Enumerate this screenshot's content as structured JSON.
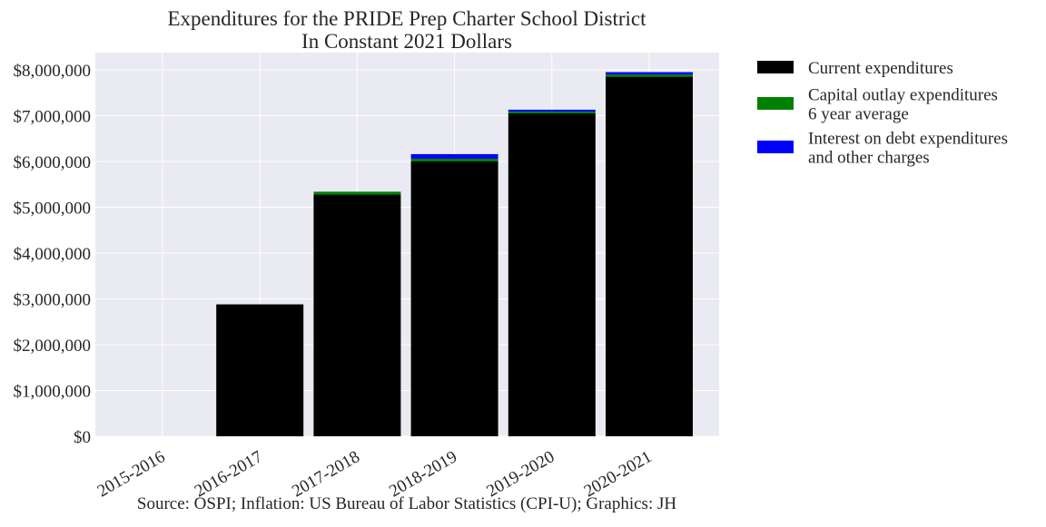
{
  "chart_data": {
    "type": "bar",
    "stacked": true,
    "title": "Expenditures for the PRIDE Prep Charter School District",
    "subtitle": "In Constant 2021 Dollars",
    "xlabel": "",
    "ylabel": "",
    "categories": [
      "2015-2016",
      "2016-2017",
      "2017-2018",
      "2018-2019",
      "2019-2020",
      "2020-2021"
    ],
    "series": [
      {
        "name": "Current expenditures",
        "name_lines": [
          "Current expenditures"
        ],
        "color": "#000000",
        "values": [
          0,
          2880000,
          5280000,
          6000000,
          7050000,
          7850000
        ]
      },
      {
        "name": "Capital outlay expenditures 6 year average",
        "name_lines": [
          "Capital outlay expenditures",
          "6 year average"
        ],
        "color": "#008000",
        "values": [
          0,
          0,
          60000,
          60000,
          40000,
          50000
        ]
      },
      {
        "name": "Interest on debt expenditures and other charges",
        "name_lines": [
          "Interest on debt expenditures",
          "and other charges"
        ],
        "color": "#0000ff",
        "values": [
          0,
          0,
          0,
          100000,
          40000,
          50000
        ]
      }
    ],
    "ylim": [
      0,
      8000000
    ],
    "yticks": [
      0,
      1000000,
      2000000,
      3000000,
      4000000,
      5000000,
      6000000,
      7000000,
      8000000
    ],
    "ytick_labels": [
      "$0",
      "$1,000,000",
      "$2,000,000",
      "$3,000,000",
      "$4,000,000",
      "$5,000,000",
      "$6,000,000",
      "$7,000,000",
      "$8,000,000"
    ],
    "grid": true,
    "legend_position": "outside-right",
    "background": "#eaeaf2",
    "source_note": "Source: OSPI; Inflation: US Bureau of Labor Statistics (CPI-U); Graphics: JH"
  }
}
